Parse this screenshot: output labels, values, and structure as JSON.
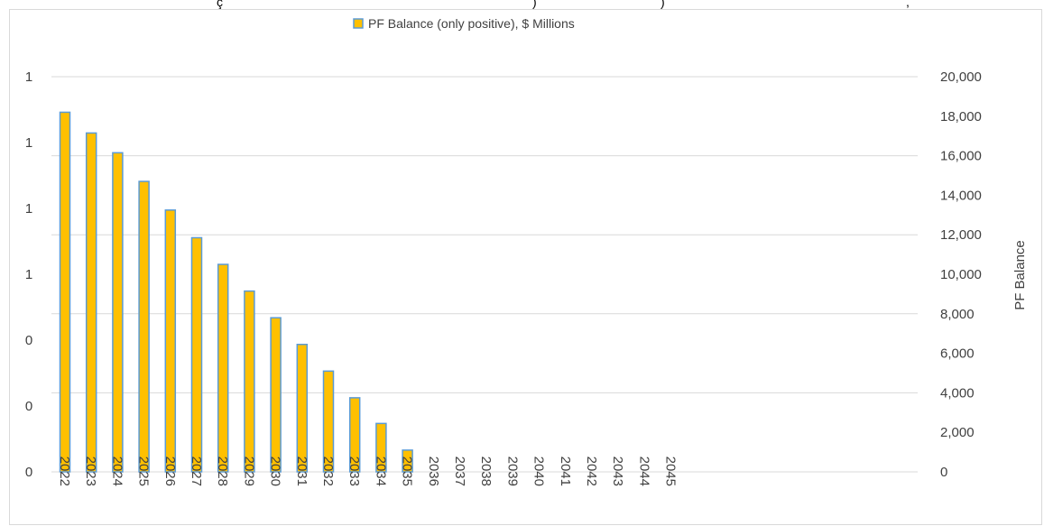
{
  "chart_data": {
    "type": "bar",
    "title_fragments": [
      "ç",
      ")",
      ")",
      ","
    ],
    "legend": {
      "label": "PF Balance (only positive), $ Millions",
      "position": "top"
    },
    "categories": [
      "2022",
      "2023",
      "2024",
      "2025",
      "2026",
      "2027",
      "2028",
      "2029",
      "2030",
      "2031",
      "2032",
      "2033",
      "2034",
      "2035",
      "2036",
      "2037",
      "2038",
      "2039",
      "2040",
      "2041",
      "2042",
      "2043",
      "2044",
      "2045"
    ],
    "series": [
      {
        "name": "PF Balance (only positive), $ Millions",
        "axis": "right",
        "values": [
          18200,
          17150,
          16150,
          14700,
          13250,
          11850,
          10500,
          9150,
          7800,
          6450,
          5100,
          3750,
          2450,
          1100,
          0,
          0,
          0,
          0,
          0,
          0,
          0,
          0,
          0,
          0
        ]
      }
    ],
    "left_axis": {
      "tick_labels": [
        "0",
        "0",
        "0",
        "1",
        "1",
        "1",
        "1"
      ],
      "label": ""
    },
    "right_axis": {
      "label": "PF Balance",
      "min": 0,
      "max": 20000,
      "step": 2000,
      "tick_labels": [
        "0",
        "2,000",
        "4,000",
        "6,000",
        "8,000",
        "10,000",
        "12,000",
        "14,000",
        "16,000",
        "18,000",
        "20,000"
      ]
    },
    "grid": true,
    "colors": {
      "bar_fill": "#FFC000",
      "bar_stroke": "#5B9BD5",
      "grid": "#d9d9d9",
      "text": "#404040"
    }
  }
}
